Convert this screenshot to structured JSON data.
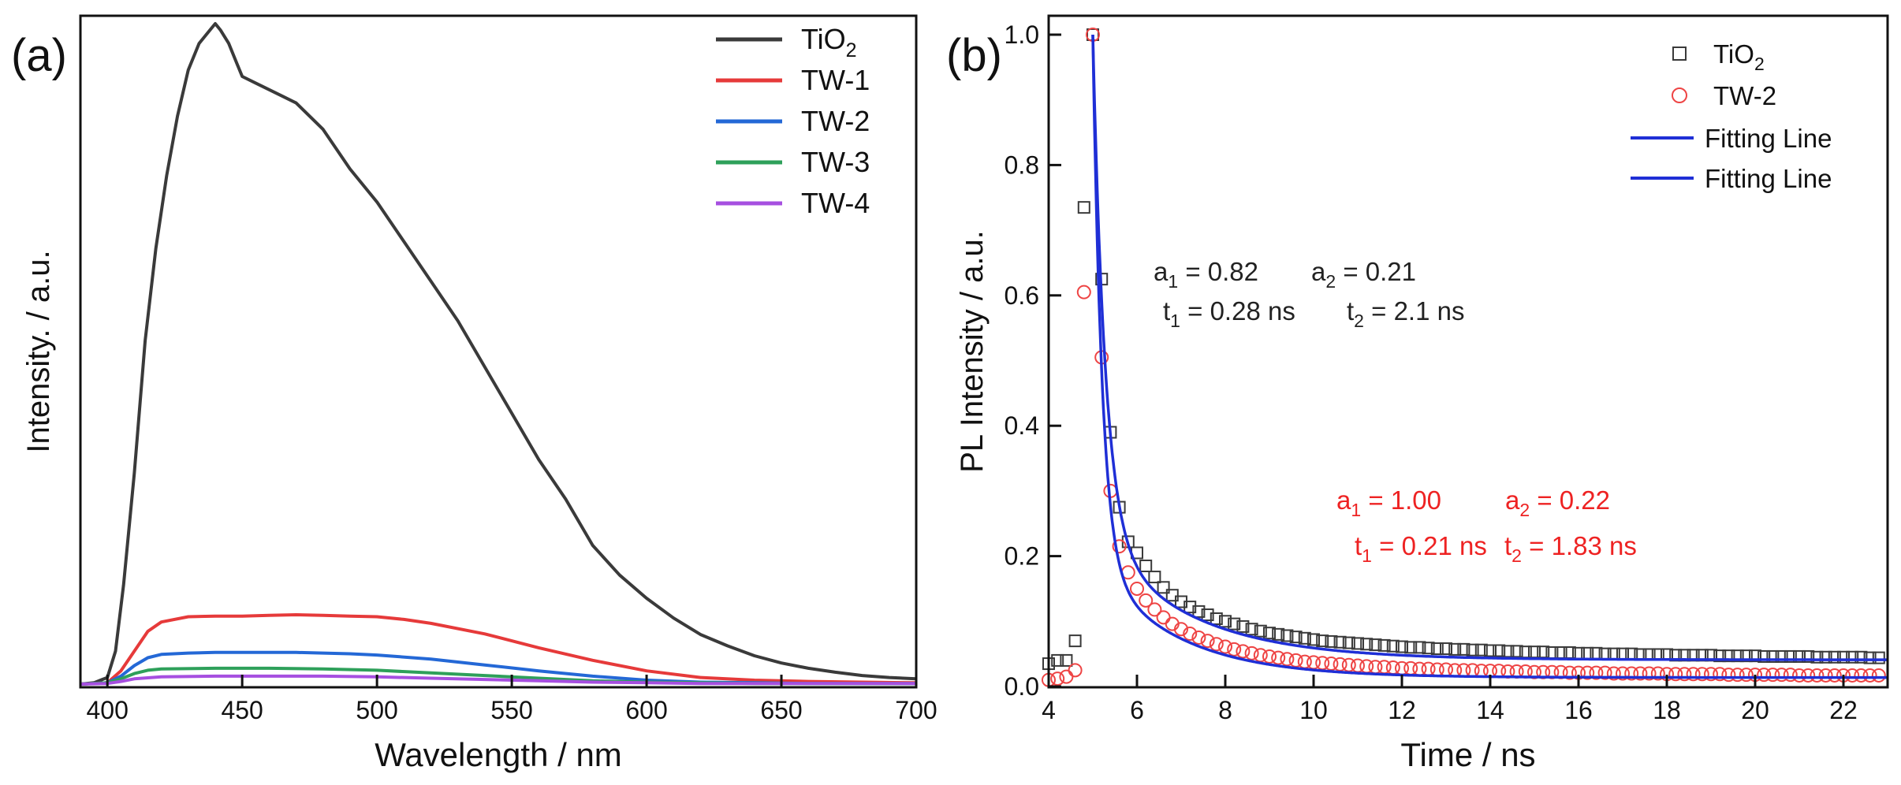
{
  "panels": [
    {
      "label": "(a)",
      "chart_data": {
        "type": "line",
        "title": "",
        "xlabel": "Wavelength / nm",
        "ylabel": "Intensity. / a.u.",
        "xlim": [
          390,
          700
        ],
        "ylim": [
          0,
          1.0
        ],
        "xticks": [
          400,
          450,
          500,
          550,
          600,
          650,
          700
        ],
        "yticks_labeled": false,
        "legend_position": "top-right",
        "series": [
          {
            "name": "TiO2",
            "label_main": "TiO",
            "label_sub": "2",
            "color": "#3a3a3a",
            "x": [
              390,
              395,
              400,
              403,
              406,
              410,
              414,
              418,
              422,
              426,
              430,
              434,
              438,
              440,
              442,
              445,
              448,
              450,
              455,
              460,
              465,
              470,
              475,
              480,
              490,
              500,
              510,
              520,
              530,
              540,
              550,
              560,
              570,
              580,
              590,
              600,
              610,
              620,
              630,
              640,
              650,
              660,
              670,
              680,
              690,
              700
            ],
            "y": [
              0,
              0.002,
              0.01,
              0.05,
              0.15,
              0.32,
              0.52,
              0.66,
              0.77,
              0.86,
              0.93,
              0.97,
              0.99,
              1.0,
              0.99,
              0.97,
              0.94,
              0.92,
              0.91,
              0.9,
              0.89,
              0.88,
              0.86,
              0.84,
              0.78,
              0.73,
              0.67,
              0.61,
              0.55,
              0.48,
              0.41,
              0.34,
              0.28,
              0.21,
              0.165,
              0.13,
              0.1,
              0.075,
              0.058,
              0.043,
              0.032,
              0.024,
              0.018,
              0.013,
              0.01,
              0.008
            ]
          },
          {
            "name": "TW-1",
            "label_main": "TW-1",
            "label_sub": "",
            "color": "#e63a3a",
            "x": [
              390,
              400,
              405,
              410,
              415,
              420,
              430,
              440,
              450,
              460,
              470,
              480,
              490,
              500,
              510,
              520,
              540,
              560,
              580,
              600,
              620,
              640,
              660,
              680,
              700
            ],
            "y": [
              0,
              0.002,
              0.02,
              0.05,
              0.08,
              0.094,
              0.102,
              0.103,
              0.103,
              0.104,
              0.105,
              0.104,
              0.103,
              0.102,
              0.098,
              0.092,
              0.076,
              0.055,
              0.036,
              0.02,
              0.01,
              0.006,
              0.004,
              0.003,
              0.002
            ]
          },
          {
            "name": "TW-2",
            "label_main": "TW-2",
            "label_sub": "",
            "color": "#2468d6",
            "x": [
              390,
              400,
              405,
              410,
              415,
              420,
              430,
              440,
              450,
              460,
              470,
              480,
              490,
              500,
              520,
              540,
              560,
              580,
              600,
              620,
              640,
              660,
              700
            ],
            "y": [
              0,
              0.002,
              0.012,
              0.028,
              0.04,
              0.045,
              0.047,
              0.048,
              0.048,
              0.048,
              0.048,
              0.047,
              0.046,
              0.044,
              0.038,
              0.029,
              0.02,
              0.012,
              0.006,
              0.003,
              0.002,
              0.001,
              0.001
            ]
          },
          {
            "name": "TW-3",
            "label_main": "TW-3",
            "label_sub": "",
            "color": "#2ea05a",
            "x": [
              390,
              400,
              405,
              410,
              415,
              420,
              440,
              460,
              480,
              500,
              520,
              540,
              560,
              580,
              600,
              620,
              640,
              700
            ],
            "y": [
              0,
              0.002,
              0.008,
              0.016,
              0.021,
              0.023,
              0.024,
              0.024,
              0.023,
              0.021,
              0.017,
              0.013,
              0.009,
              0.005,
              0.003,
              0.002,
              0.001,
              0.001
            ]
          },
          {
            "name": "TW-4",
            "label_main": "TW-4",
            "label_sub": "",
            "color": "#a64fe0",
            "x": [
              390,
              400,
              405,
              410,
              420,
              440,
              460,
              480,
              500,
              520,
              540,
              560,
              580,
              600,
              620,
              700
            ],
            "y": [
              0,
              0.001,
              0.004,
              0.008,
              0.011,
              0.012,
              0.012,
              0.012,
              0.011,
              0.009,
              0.007,
              0.005,
              0.003,
              0.002,
              0.001,
              0.001
            ]
          }
        ]
      }
    },
    {
      "label": "(b)",
      "chart_data": {
        "type": "scatter",
        "title": "",
        "xlabel": "Time / ns",
        "ylabel": "PL Intensity / a.u.",
        "xlim": [
          4,
          23
        ],
        "ylim": [
          0,
          1.0
        ],
        "xticks": [
          4,
          6,
          8,
          10,
          12,
          14,
          16,
          18,
          20,
          22
        ],
        "yticks": [
          0.0,
          0.2,
          0.4,
          0.6,
          0.8,
          1.0
        ],
        "legend_position": "top-right",
        "series": [
          {
            "name": "TiO2",
            "label_main": "TiO",
            "label_sub": "2",
            "marker": "square",
            "color": "#3a3a3a",
            "x": [
              4.0,
              4.2,
              4.4,
              4.6,
              4.8,
              5.0,
              5.2,
              5.4,
              5.6,
              5.8,
              6.0,
              6.2,
              6.4,
              6.6,
              6.8,
              7.0,
              7.2,
              7.4,
              7.6,
              7.8,
              8.0,
              8.2,
              8.4,
              8.6,
              8.8,
              9.0,
              9.2,
              9.4,
              9.6,
              9.8,
              10.0,
              10.2,
              10.4,
              10.6,
              10.8,
              11.0,
              11.2,
              11.4,
              11.6,
              11.8,
              12.0,
              12.2,
              12.4,
              12.6,
              12.8,
              13.0,
              13.2,
              13.4,
              13.6,
              13.8,
              14.0,
              14.2,
              14.4,
              14.6,
              14.8,
              15.0,
              15.2,
              15.4,
              15.6,
              15.8,
              16.0,
              16.2,
              16.4,
              16.6,
              16.8,
              17.0,
              17.2,
              17.4,
              17.6,
              17.8,
              18.0,
              18.2,
              18.4,
              18.6,
              18.8,
              19.0,
              19.2,
              19.4,
              19.6,
              19.8,
              20.0,
              20.2,
              20.4,
              20.6,
              20.8,
              21.0,
              21.2,
              21.4,
              21.6,
              21.8,
              22.0,
              22.2,
              22.4,
              22.6,
              22.8
            ],
            "y": [
              0.035,
              0.04,
              0.04,
              0.07,
              0.735,
              1.0,
              0.625,
              0.39,
              0.275,
              0.222,
              0.205,
              0.185,
              0.168,
              0.152,
              0.14,
              0.13,
              0.122,
              0.115,
              0.11,
              0.104,
              0.1,
              0.096,
              0.092,
              0.088,
              0.085,
              0.082,
              0.08,
              0.078,
              0.076,
              0.074,
              0.072,
              0.07,
              0.069,
              0.068,
              0.067,
              0.066,
              0.065,
              0.064,
              0.063,
              0.062,
              0.061,
              0.06,
              0.06,
              0.059,
              0.058,
              0.058,
              0.057,
              0.057,
              0.056,
              0.056,
              0.055,
              0.055,
              0.054,
              0.054,
              0.053,
              0.053,
              0.053,
              0.052,
              0.052,
              0.052,
              0.051,
              0.051,
              0.051,
              0.05,
              0.05,
              0.05,
              0.05,
              0.049,
              0.049,
              0.049,
              0.049,
              0.048,
              0.048,
              0.048,
              0.048,
              0.048,
              0.047,
              0.047,
              0.047,
              0.047,
              0.047,
              0.046,
              0.046,
              0.046,
              0.046,
              0.046,
              0.046,
              0.045,
              0.045,
              0.045,
              0.045,
              0.045,
              0.045,
              0.044,
              0.044
            ]
          },
          {
            "name": "TW-2",
            "label_main": "TW-2",
            "label_sub": "",
            "marker": "circle",
            "color": "#ee4444",
            "x": [
              4.0,
              4.2,
              4.4,
              4.6,
              4.8,
              5.0,
              5.2,
              5.4,
              5.6,
              5.8,
              6.0,
              6.2,
              6.4,
              6.6,
              6.8,
              7.0,
              7.2,
              7.4,
              7.6,
              7.8,
              8.0,
              8.2,
              8.4,
              8.6,
              8.8,
              9.0,
              9.2,
              9.4,
              9.6,
              9.8,
              10.0,
              10.2,
              10.4,
              10.6,
              10.8,
              11.0,
              11.2,
              11.4,
              11.6,
              11.8,
              12.0,
              12.2,
              12.4,
              12.6,
              12.8,
              13.0,
              13.2,
              13.4,
              13.6,
              13.8,
              14.0,
              14.2,
              14.4,
              14.6,
              14.8,
              15.0,
              15.2,
              15.4,
              15.6,
              15.8,
              16.0,
              16.2,
              16.4,
              16.6,
              16.8,
              17.0,
              17.2,
              17.4,
              17.6,
              17.8,
              18.0,
              18.2,
              18.4,
              18.6,
              18.8,
              19.0,
              19.2,
              19.4,
              19.6,
              19.8,
              20.0,
              20.2,
              20.4,
              20.6,
              20.8,
              21.0,
              21.2,
              21.4,
              21.6,
              21.8,
              22.0,
              22.2,
              22.4,
              22.6,
              22.8
            ],
            "y": [
              0.01,
              0.012,
              0.015,
              0.025,
              0.605,
              1.0,
              0.505,
              0.3,
              0.215,
              0.175,
              0.15,
              0.132,
              0.118,
              0.106,
              0.096,
              0.088,
              0.081,
              0.075,
              0.07,
              0.065,
              0.061,
              0.057,
              0.054,
              0.051,
              0.048,
              0.046,
              0.044,
              0.042,
              0.04,
              0.038,
              0.037,
              0.036,
              0.035,
              0.034,
              0.033,
              0.032,
              0.031,
              0.03,
              0.03,
              0.029,
              0.028,
              0.028,
              0.027,
              0.027,
              0.026,
              0.026,
              0.025,
              0.025,
              0.025,
              0.024,
              0.024,
              0.024,
              0.023,
              0.023,
              0.023,
              0.022,
              0.022,
              0.022,
              0.022,
              0.021,
              0.021,
              0.021,
              0.021,
              0.021,
              0.02,
              0.02,
              0.02,
              0.02,
              0.02,
              0.02,
              0.019,
              0.019,
              0.019,
              0.019,
              0.019,
              0.019,
              0.019,
              0.018,
              0.018,
              0.018,
              0.018,
              0.018,
              0.018,
              0.018,
              0.018,
              0.017,
              0.017,
              0.017,
              0.017,
              0.017,
              0.017,
              0.017,
              0.017,
              0.017,
              0.017
            ]
          },
          {
            "name": "Fitting Line",
            "label_main": "Fitting Line",
            "label_sub": "",
            "marker": "line",
            "color": "#1f2fd6",
            "fit_of": "TiO2",
            "x0": 5.0,
            "a1": 0.82,
            "t1": 0.28,
            "a2": 0.21,
            "t2": 2.1,
            "offset": 0.044
          },
          {
            "name": "Fitting Line",
            "label_main": "Fitting Line",
            "label_sub": "",
            "marker": "line",
            "color": "#1f2fd6",
            "fit_of": "TW-2",
            "x0": 5.0,
            "a1": 1.0,
            "t1": 0.21,
            "a2": 0.22,
            "t2": 1.83,
            "offset": 0.017
          }
        ],
        "annotations": [
          {
            "color": "#222222",
            "lines": [
              [
                {
                  "main": "a",
                  "sub": "1",
                  "rest": " = 0.82"
                },
                {
                  "main": "a",
                  "sub": "2",
                  "rest": " = 0.21"
                }
              ],
              [
                {
                  "main": "t",
                  "sub": "1",
                  "rest": " = 0.28 ns"
                },
                {
                  "main": "t",
                  "sub": "2",
                  "rest": " = 2.1 ns"
                }
              ]
            ]
          },
          {
            "color": "#ee2222",
            "lines": [
              [
                {
                  "main": "a",
                  "sub": "1",
                  "rest": " = 1.00"
                },
                {
                  "main": "a",
                  "sub": "2",
                  "rest": " = 0.22"
                }
              ],
              [
                {
                  "main": "t",
                  "sub": "1",
                  "rest": " = 0.21 ns"
                },
                {
                  "main": "t",
                  "sub": "2",
                  "rest": " = 1.83 ns"
                }
              ]
            ]
          }
        ]
      }
    }
  ]
}
